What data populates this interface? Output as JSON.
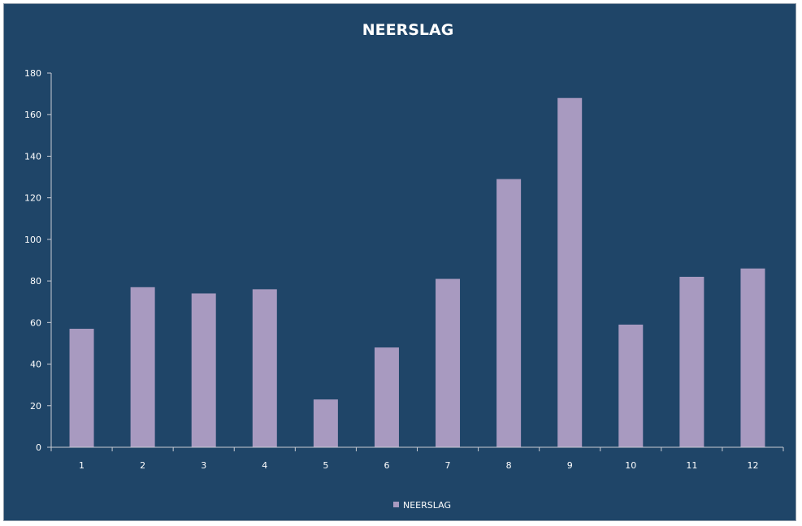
{
  "chart_data": {
    "type": "bar",
    "title": "NEERSLAG",
    "categories": [
      "1",
      "2",
      "3",
      "4",
      "5",
      "6",
      "7",
      "8",
      "9",
      "10",
      "11",
      "12"
    ],
    "series": [
      {
        "name": "NEERSLAG",
        "values": [
          57,
          77,
          74,
          76,
          23,
          48,
          81,
          129,
          168,
          59,
          82,
          86
        ]
      }
    ],
    "xlabel": "",
    "ylabel": "",
    "ylim": [
      0,
      180
    ],
    "yticks": [
      "0",
      "20",
      "40",
      "60",
      "80",
      "100",
      "120",
      "140",
      "160",
      "180"
    ],
    "grid": false,
    "legend_position": "bottom",
    "colors": {
      "background": "#1f4568",
      "bar": "#a89ac0",
      "axis": "#c8ccd4",
      "text": "#ffffff"
    }
  }
}
